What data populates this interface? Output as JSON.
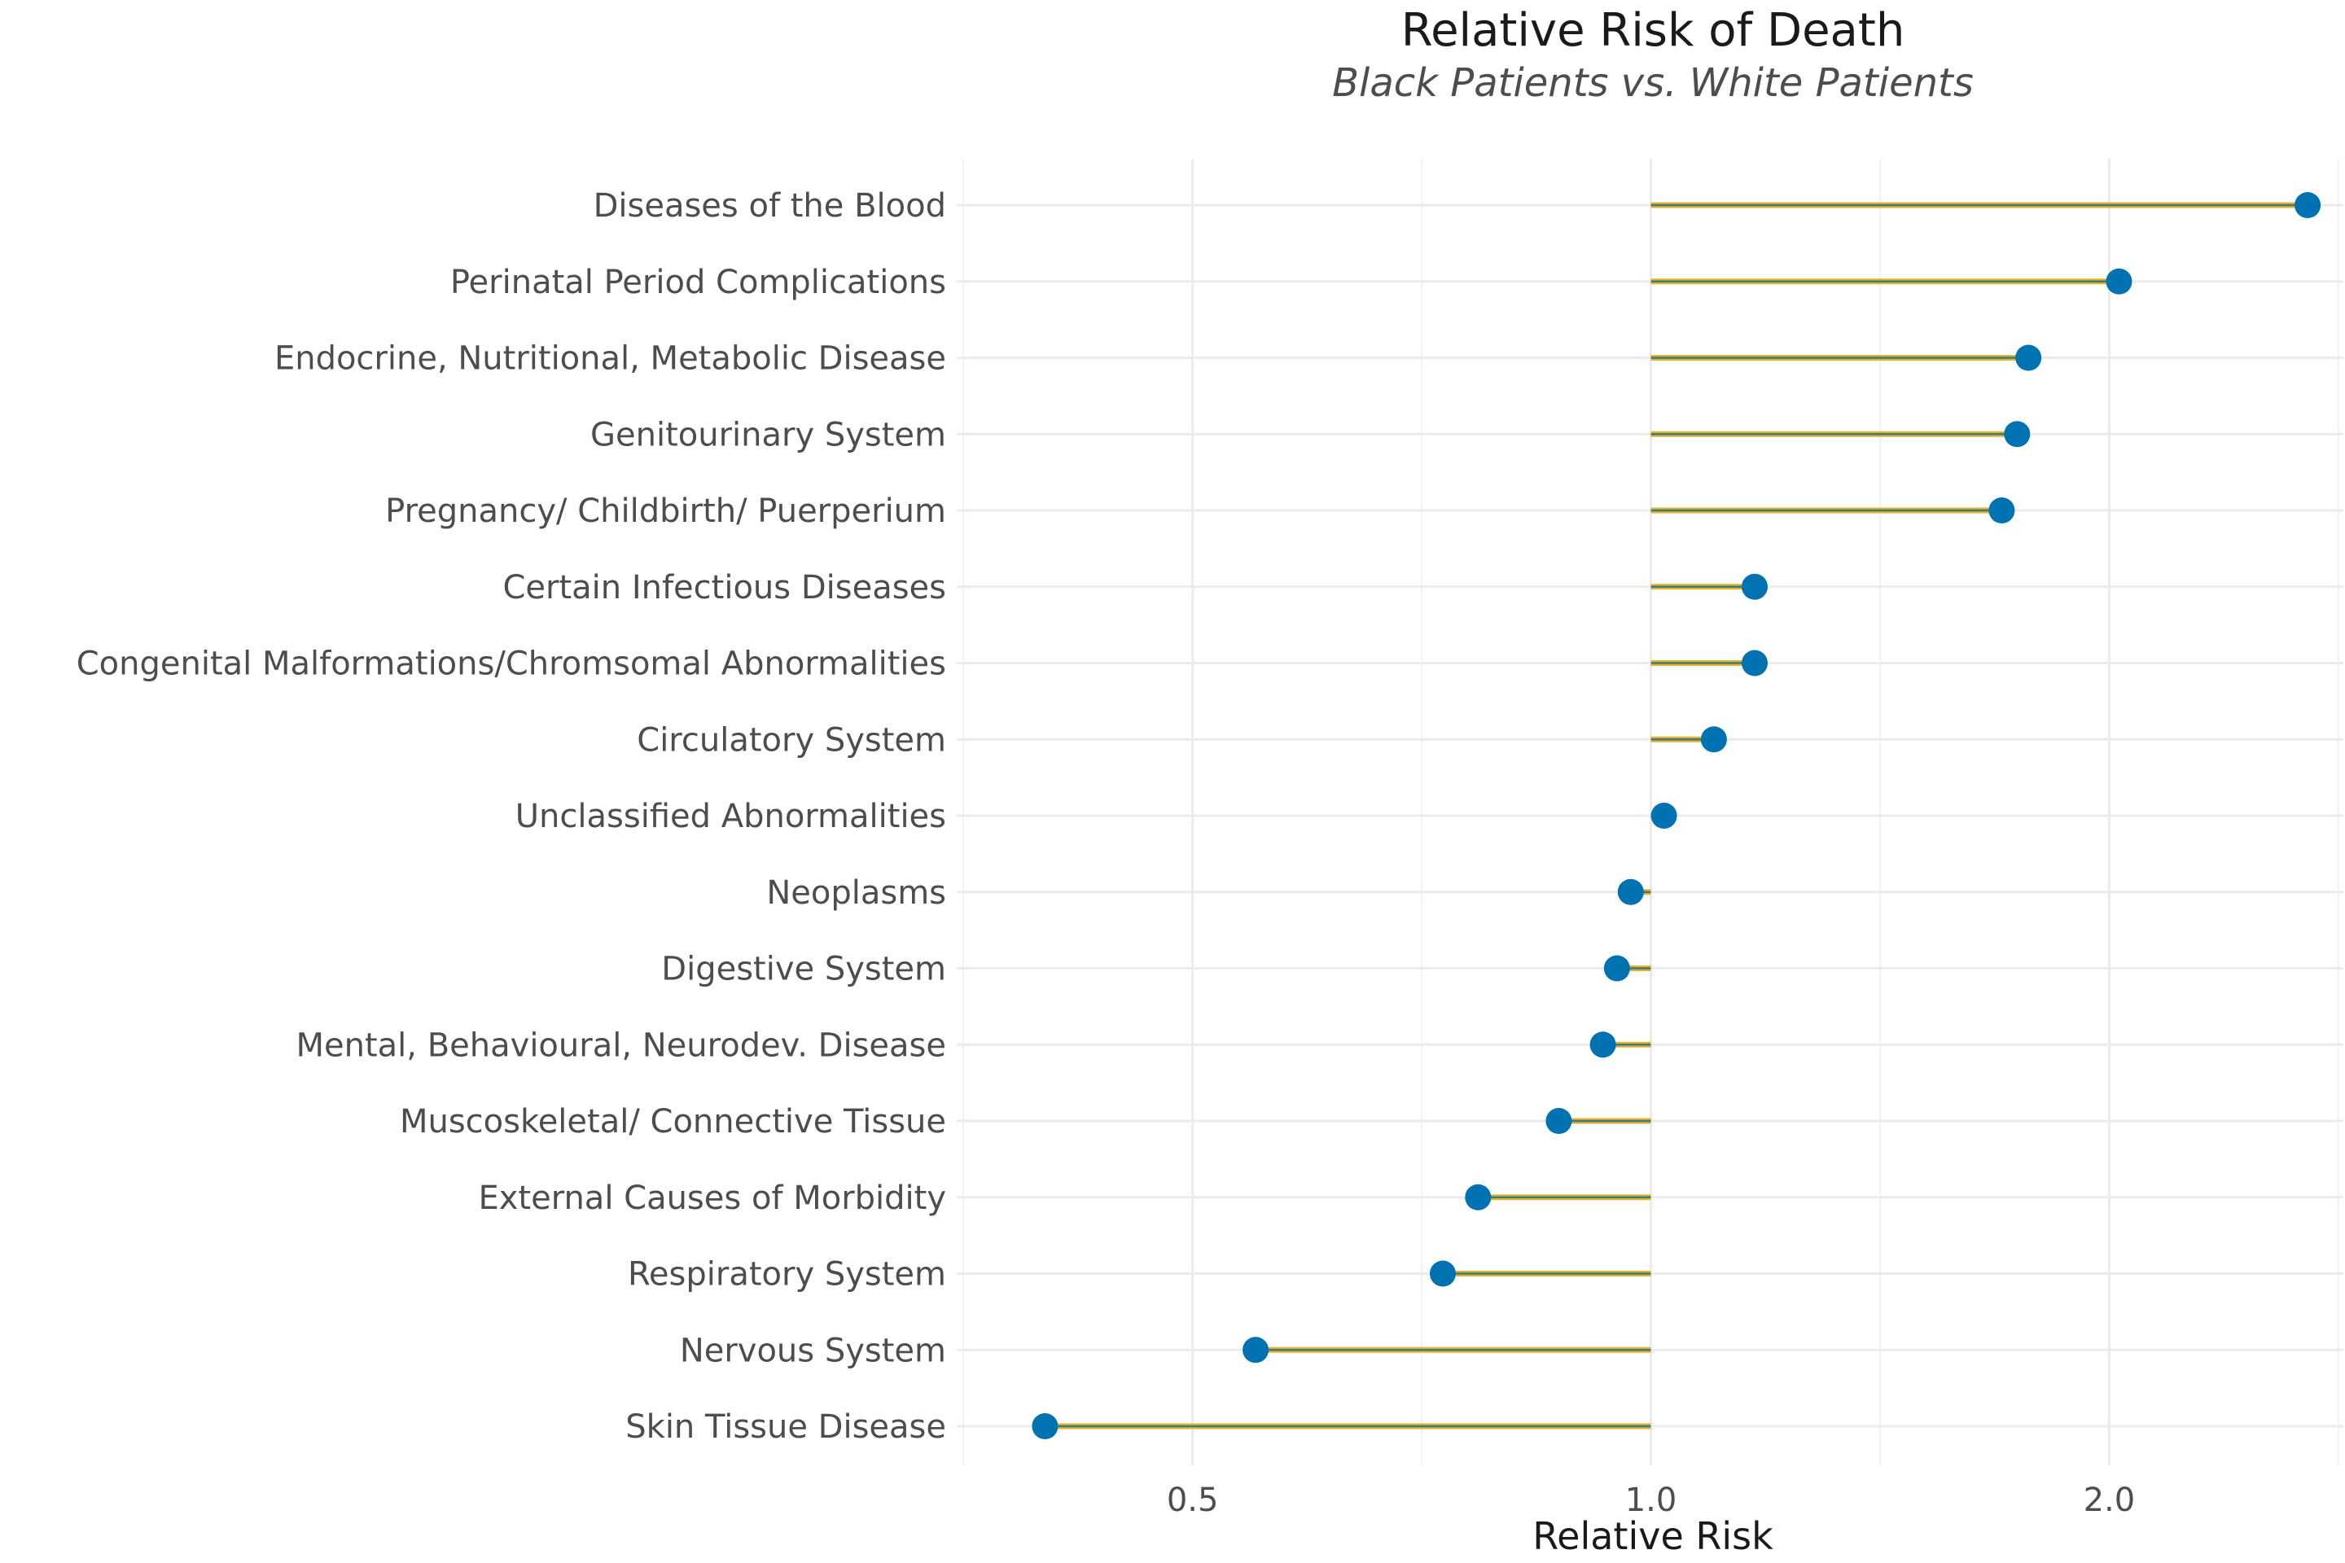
{
  "chart_data": {
    "type": "lollipop",
    "title": "Relative Risk of Death",
    "subtitle": "Black Patients vs. White Patients",
    "xlabel": "Relative Risk",
    "x_scale": "log2",
    "xlim": [
      0.35,
      2.85
    ],
    "reference": 1.0,
    "xticks": [
      {
        "value": 0.5,
        "label": "0.5"
      },
      {
        "value": 1.0,
        "label": "1.0"
      },
      {
        "value": 2.0,
        "label": "2.0"
      }
    ],
    "grid": true,
    "colors": {
      "point": "#0072b2",
      "stem_outer": "#e6b12b",
      "stem_inner": "#3a7d7a"
    },
    "categories": [
      "Diseases of the Blood",
      "Perinatal Period Complications",
      "Endocrine, Nutritional, Metabolic Disease",
      "Genitourinary System",
      "Pregnancy/ Childbirth/ Puerperium",
      "Certain Infectious Diseases",
      "Congenital Malformations/Chromsomal Abnormalities",
      "Circulatory System",
      "Unclassified Abnormalities",
      "Neoplasms",
      "Digestive System",
      "Mental, Behavioural, Neurodev. Disease",
      "Muscoskeletal/ Connective Tissue",
      "External Causes of Morbidity",
      "Respiratory System",
      "Nervous System",
      "Skin Tissue Disease"
    ],
    "values": [
      2.7,
      2.03,
      1.77,
      1.74,
      1.7,
      1.17,
      1.17,
      1.1,
      1.02,
      0.97,
      0.95,
      0.93,
      0.87,
      0.77,
      0.73,
      0.55,
      0.4
    ]
  }
}
